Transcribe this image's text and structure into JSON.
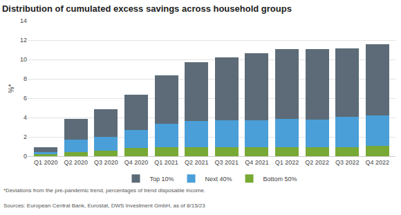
{
  "chart_data": {
    "type": "bar",
    "title": "Distribution of cumulated excess savings across household groups",
    "y_label": "%*",
    "annotations": [
      "*Deviations from the pre-pandemic trend, percentages of trend disposable income.",
      "Sources: European Central Bank, Eurostat, DWS Investment GmbH, as of 8/15/23"
    ],
    "categories": [
      "Q1 2020",
      "Q2 2020",
      "Q3 2020",
      "Q4 2020",
      "Q1 2021",
      "Q2 2021",
      "Q3 2021",
      "Q4 2021",
      "Q1 2022",
      "Q2 2022",
      "Q3 2022",
      "Q4 2022"
    ],
    "series": [
      {
        "name": "Bottom 50%",
        "color": "#78a935",
        "values": [
          0.2,
          0.45,
          0.55,
          0.85,
          0.95,
          0.95,
          0.95,
          0.95,
          0.95,
          0.9,
          0.95,
          1.05
        ]
      },
      {
        "name": "Next 40%",
        "color": "#4a9fd8",
        "values": [
          0.25,
          1.25,
          1.45,
          1.9,
          2.4,
          2.7,
          2.8,
          2.8,
          2.9,
          2.9,
          3.1,
          3.2
        ]
      },
      {
        "name": "Top 10%",
        "color": "#5c6b77",
        "values": [
          0.5,
          2.15,
          2.85,
          3.6,
          5.0,
          6.1,
          6.5,
          6.9,
          7.2,
          7.25,
          7.1,
          7.3
        ]
      }
    ],
    "ylim": [
      0,
      14
    ],
    "yticks": [
      0,
      2,
      4,
      6,
      8,
      10,
      12,
      14
    ],
    "grid": true,
    "stacked": true,
    "legend": "bottom"
  }
}
